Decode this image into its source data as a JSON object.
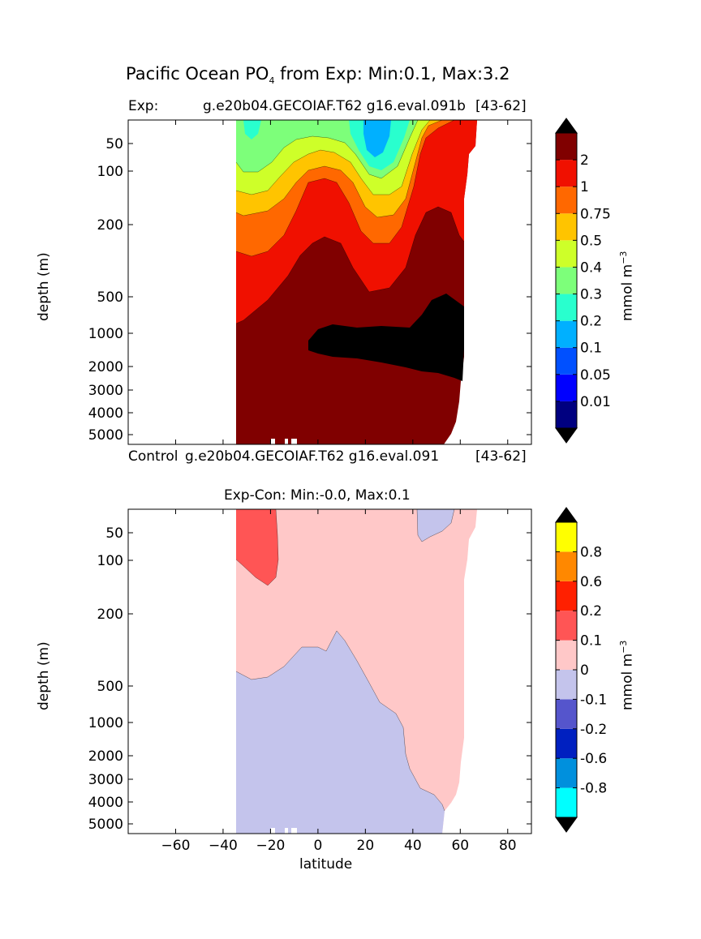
{
  "figure": {
    "suptitle": "Pacific Ocean PO",
    "suptitle_sub": "4",
    "suptitle_rest": " from Exp: Min:0.1, Max:3.2"
  },
  "chart_data": [
    {
      "type": "contourf",
      "panel": "top",
      "title_left": "Exp:",
      "title_center": "g.e20b04.GECOIAF.T62 g16.eval.091b",
      "title_right": "[43-62]",
      "ylabel": "depth (m)",
      "xlabel": "",
      "xlim": [
        -80,
        90
      ],
      "ylim_depth": [
        5500,
        0
      ],
      "ytick_labels": [
        "50",
        "100",
        "200",
        "500",
        "1000",
        "2000",
        "3000",
        "4000",
        "5000"
      ],
      "colorbar": {
        "label": "mmol m",
        "label_exp": "−3",
        "levels": [
          "0.01",
          "0.05",
          "0.1",
          "0.2",
          "0.3",
          "0.4",
          "0.5",
          "0.75",
          "1",
          "2"
        ],
        "colors": [
          "#000080",
          "#0000ff",
          "#0050ff",
          "#00b0ff",
          "#29ffce",
          "#7dff7a",
          "#ceff29",
          "#ffc400",
          "#ff6800",
          "#f01000",
          "#800000"
        ],
        "extend_colors": [
          "#000000",
          "#000000"
        ]
      },
      "data_regions": [
        {
          "depth_range": "surface-100",
          "lat_range": [
            -33,
            60
          ],
          "level_range": "0.2-0.5"
        },
        {
          "depth_range": "100-300",
          "lat_range": [
            -33,
            60
          ],
          "level_range": "0.5-2"
        },
        {
          "depth_range": "300-5500",
          "lat_range": [
            -33,
            60
          ],
          "level_range": ">2"
        },
        {
          "depth_range": "1000-2500",
          "lat_range": [
            -4,
            61
          ],
          "level_range": ">3.2 (over)"
        }
      ]
    },
    {
      "type": "contourf",
      "panel": "bottom",
      "title_left": "Control",
      "title_center": "g.e20b04.GECOIAF.T62 g16.eval.091",
      "title_right": "[43-62]",
      "title_diff": "Exp-Con: Min:-0.0, Max:0.1",
      "ylabel": "depth (m)",
      "xlabel": "latitude",
      "xlim": [
        -80,
        90
      ],
      "xtick_labels": [
        "−60",
        "−40",
        "−20",
        "0",
        "20",
        "40",
        "60",
        "80"
      ],
      "ytick_labels": [
        "50",
        "100",
        "200",
        "500",
        "1000",
        "2000",
        "3000",
        "4000",
        "5000"
      ],
      "colorbar": {
        "label": "mmol m",
        "label_exp": "−3",
        "levels": [
          "-0.8",
          "-0.6",
          "-0.2",
          "-0.1",
          "0",
          "0.1",
          "0.2",
          "0.6",
          "0.8"
        ],
        "colors": [
          "#00ffff",
          "#0090dd",
          "#0020c0",
          "#5555cc",
          "#c4c4ec",
          "#ffc8c8",
          "#ff5555",
          "#ff2000",
          "#ff8800",
          "#ffff00"
        ],
        "extend_colors": [
          "#000000",
          "#000000"
        ]
      },
      "data_regions": [
        {
          "depth_range": "surface-150",
          "lat_range": [
            -33,
            -17
          ],
          "level_range": "0.1-0.2"
        },
        {
          "depth_range": "surface-5500",
          "lat_range": [
            -33,
            66
          ],
          "level_range": "0-0.1"
        },
        {
          "depth_range": "300-5500",
          "lat_range": [
            -33,
            52
          ],
          "level_range": "-0.1-0"
        },
        {
          "depth_range": "surface-70",
          "lat_range": [
            41,
            57
          ],
          "level_range": "-0.1-0"
        }
      ]
    }
  ]
}
